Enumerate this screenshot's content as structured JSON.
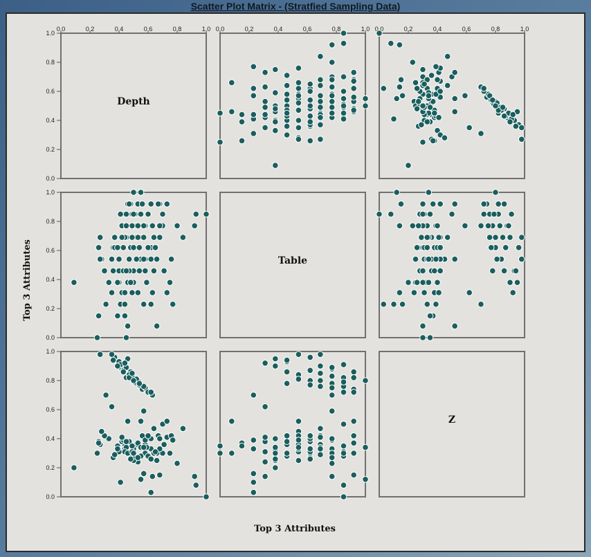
{
  "window": {
    "title": "Scatter Plot Matrix - (Stratfied Sampling Data)"
  },
  "chart_data": {
    "type": "scatter",
    "title": "Scatter Plot Matrix - (Stratfied Sampling Data)",
    "xlabel": "Top 3 Attributes",
    "ylabel": "Top 3 Attributes",
    "variables": [
      "Depth",
      "Table",
      "Z"
    ],
    "ticks": [
      "0.0",
      "0.2",
      "0.4",
      "0.6",
      "0.8",
      "1.0"
    ],
    "tick_values": [
      0,
      0.2,
      0.4,
      0.6,
      0.8,
      1.0
    ],
    "xlim": [
      0,
      1
    ],
    "ylim": [
      0,
      1
    ],
    "point_color": "#1b5e5e",
    "points": [
      {
        "Depth": 0.45,
        "Table": 0.0,
        "Z": 0.35
      },
      {
        "Depth": 0.46,
        "Table": 0.08,
        "Z": 0.52
      },
      {
        "Depth": 0.44,
        "Table": 0.15,
        "Z": 0.36
      },
      {
        "Depth": 0.41,
        "Table": 0.23,
        "Z": 0.1
      },
      {
        "Depth": 0.44,
        "Table": 0.23,
        "Z": 0.33
      },
      {
        "Depth": 0.53,
        "Table": 0.31,
        "Z": 0.24
      },
      {
        "Depth": 0.42,
        "Table": 0.31,
        "Z": 0.38
      },
      {
        "Depth": 0.5,
        "Table": 0.38,
        "Z": 0.25
      },
      {
        "Depth": 0.4,
        "Table": 0.38,
        "Z": 0.32
      },
      {
        "Depth": 0.5,
        "Table": 0.46,
        "Z": 0.28
      },
      {
        "Depth": 0.47,
        "Table": 0.46,
        "Z": 0.38
      },
      {
        "Depth": 0.55,
        "Table": 0.54,
        "Z": 0.52
      },
      {
        "Depth": 0.4,
        "Table": 0.54,
        "Z": 0.31
      },
      {
        "Depth": 0.36,
        "Table": 0.62,
        "Z": 0.27
      },
      {
        "Depth": 0.48,
        "Table": 0.62,
        "Z": 0.3
      },
      {
        "Depth": 0.52,
        "Table": 0.69,
        "Z": 0.36
      },
      {
        "Depth": 0.45,
        "Table": 0.69,
        "Z": 0.34
      },
      {
        "Depth": 0.5,
        "Table": 0.77,
        "Z": 0.33
      },
      {
        "Depth": 0.43,
        "Table": 0.77,
        "Z": 0.39
      },
      {
        "Depth": 0.49,
        "Table": 0.85,
        "Z": 0.35
      },
      {
        "Depth": 0.44,
        "Table": 0.85,
        "Z": 0.31
      },
      {
        "Depth": 0.46,
        "Table": 0.92,
        "Z": 0.3
      },
      {
        "Depth": 0.53,
        "Table": 0.92,
        "Z": 0.37
      },
      {
        "Depth": 0.55,
        "Table": 1.0,
        "Z": 0.34
      },
      {
        "Depth": 0.33,
        "Table": 0.38,
        "Z": 0.4
      },
      {
        "Depth": 0.3,
        "Table": 0.46,
        "Z": 0.42
      },
      {
        "Depth": 0.28,
        "Table": 0.54,
        "Z": 0.45
      },
      {
        "Depth": 0.26,
        "Table": 0.62,
        "Z": 0.38
      },
      {
        "Depth": 0.37,
        "Table": 0.69,
        "Z": 0.29
      },
      {
        "Depth": 0.58,
        "Table": 0.77,
        "Z": 0.3
      },
      {
        "Depth": 0.6,
        "Table": 0.85,
        "Z": 0.28
      },
      {
        "Depth": 0.62,
        "Table": 0.54,
        "Z": 0.33
      },
      {
        "Depth": 0.58,
        "Table": 0.46,
        "Z": 0.36
      },
      {
        "Depth": 0.62,
        "Table": 0.62,
        "Z": 0.4
      },
      {
        "Depth": 0.56,
        "Table": 0.69,
        "Z": 0.42
      },
      {
        "Depth": 0.66,
        "Table": 0.54,
        "Z": 0.25
      },
      {
        "Depth": 0.59,
        "Table": 0.38,
        "Z": 0.34
      },
      {
        "Depth": 0.49,
        "Table": 0.31,
        "Z": 0.31
      },
      {
        "Depth": 0.7,
        "Table": 0.77,
        "Z": 0.3
      },
      {
        "Depth": 0.68,
        "Table": 0.92,
        "Z": 0.15
      },
      {
        "Depth": 0.63,
        "Table": 0.31,
        "Z": 0.14
      },
      {
        "Depth": 0.57,
        "Table": 0.23,
        "Z": 0.16
      },
      {
        "Depth": 0.45,
        "Table": 0.85,
        "Z": 0.82
      },
      {
        "Depth": 0.52,
        "Table": 0.77,
        "Z": 0.78
      },
      {
        "Depth": 0.48,
        "Table": 0.92,
        "Z": 0.86
      },
      {
        "Depth": 0.44,
        "Table": 0.69,
        "Z": 0.9
      },
      {
        "Depth": 0.55,
        "Table": 0.85,
        "Z": 0.76
      },
      {
        "Depth": 0.5,
        "Table": 0.62,
        "Z": 0.8
      },
      {
        "Depth": 0.42,
        "Table": 0.77,
        "Z": 0.88
      },
      {
        "Depth": 0.47,
        "Table": 0.54,
        "Z": 0.84
      },
      {
        "Depth": 0.4,
        "Table": 0.46,
        "Z": 0.93
      },
      {
        "Depth": 0.53,
        "Table": 0.69,
        "Z": 0.8
      },
      {
        "Depth": 0.46,
        "Table": 0.38,
        "Z": 0.95
      },
      {
        "Depth": 0.49,
        "Table": 0.77,
        "Z": 0.83
      },
      {
        "Depth": 0.56,
        "Table": 0.92,
        "Z": 0.74
      },
      {
        "Depth": 0.51,
        "Table": 0.85,
        "Z": 0.79
      },
      {
        "Depth": 0.43,
        "Table": 0.62,
        "Z": 0.87
      },
      {
        "Depth": 0.58,
        "Table": 0.77,
        "Z": 0.75
      },
      {
        "Depth": 0.47,
        "Table": 0.92,
        "Z": 0.82
      },
      {
        "Depth": 0.54,
        "Table": 0.62,
        "Z": 0.77
      },
      {
        "Depth": 0.41,
        "Table": 0.85,
        "Z": 0.91
      },
      {
        "Depth": 0.49,
        "Table": 0.69,
        "Z": 0.85
      },
      {
        "Depth": 0.52,
        "Table": 0.54,
        "Z": 0.81
      },
      {
        "Depth": 0.45,
        "Table": 0.77,
        "Z": 0.89
      },
      {
        "Depth": 0.6,
        "Table": 0.85,
        "Z": 0.72
      },
      {
        "Depth": 0.57,
        "Table": 0.69,
        "Z": 0.76
      },
      {
        "Depth": 0.37,
        "Table": 0.62,
        "Z": 0.96
      },
      {
        "Depth": 0.35,
        "Table": 0.54,
        "Z": 0.98
      },
      {
        "Depth": 0.44,
        "Table": 0.31,
        "Z": 0.92
      },
      {
        "Depth": 0.63,
        "Table": 0.77,
        "Z": 0.7
      },
      {
        "Depth": 0.62,
        "Table": 0.92,
        "Z": 0.72
      },
      {
        "Depth": 0.5,
        "Table": 1.0,
        "Z": 0.8
      },
      {
        "Depth": 0.27,
        "Table": 0.69,
        "Z": 0.98
      },
      {
        "Depth": 0.36,
        "Table": 0.46,
        "Z": 0.94
      },
      {
        "Depth": 0.39,
        "Table": 0.38,
        "Z": 0.9
      },
      {
        "Depth": 0.31,
        "Table": 0.23,
        "Z": 0.7
      },
      {
        "Depth": 0.43,
        "Table": 0.46,
        "Z": 0.86
      },
      {
        "Depth": 0.54,
        "Table": 0.46,
        "Z": 0.78
      },
      {
        "Depth": 0.62,
        "Table": 0.23,
        "Z": 0.03
      },
      {
        "Depth": 0.73,
        "Table": 0.31,
        "Z": 0.41
      },
      {
        "Depth": 0.76,
        "Table": 0.54,
        "Z": 0.42
      },
      {
        "Depth": 0.8,
        "Table": 0.77,
        "Z": 0.23
      },
      {
        "Depth": 0.62,
        "Table": 0.62,
        "Z": 0.26
      },
      {
        "Depth": 0.7,
        "Table": 0.85,
        "Z": 0.5
      },
      {
        "Depth": 0.64,
        "Table": 0.69,
        "Z": 0.47
      },
      {
        "Depth": 0.67,
        "Table": 0.92,
        "Z": 0.42
      },
      {
        "Depth": 0.75,
        "Table": 0.38,
        "Z": 0.3
      },
      {
        "Depth": 0.93,
        "Table": 0.85,
        "Z": 0.08
      },
      {
        "Depth": 0.25,
        "Table": 0.0,
        "Z": 0.3
      },
      {
        "Depth": 0.09,
        "Table": 0.38,
        "Z": 0.2
      },
      {
        "Depth": 0.27,
        "Table": 0.54,
        "Z": 0.36
      },
      {
        "Depth": 0.84,
        "Table": 0.69,
        "Z": 0.47
      },
      {
        "Depth": 0.57,
        "Table": 0.77,
        "Z": 0.59
      },
      {
        "Depth": 0.35,
        "Table": 0.31,
        "Z": 0.62
      },
      {
        "Depth": 0.66,
        "Table": 0.08,
        "Z": 0.3
      },
      {
        "Depth": 0.77,
        "Table": 0.23,
        "Z": 0.39
      },
      {
        "Depth": 0.92,
        "Table": 0.77,
        "Z": 0.14
      },
      {
        "Depth": 0.73,
        "Table": 0.92,
        "Z": 0.52
      },
      {
        "Depth": 0.26,
        "Table": 0.15,
        "Z": 0.37
      },
      {
        "Depth": 0.55,
        "Table": 1.0,
        "Z": 0.12
      },
      {
        "Depth": 0.64,
        "Table": 0.46,
        "Z": 0.3
      },
      {
        "Depth": 1.0,
        "Table": 0.85,
        "Z": 0.0
      },
      {
        "Depth": 0.39,
        "Table": 0.15,
        "Z": 0.35
      },
      {
        "Depth": 0.58,
        "Table": 0.54,
        "Z": 0.39
      },
      {
        "Depth": 0.68,
        "Table": 0.69,
        "Z": 0.33
      },
      {
        "Depth": 0.6,
        "Table": 0.62,
        "Z": 0.42
      },
      {
        "Depth": 0.68,
        "Table": 0.77,
        "Z": 0.4
      },
      {
        "Depth": 0.55,
        "Table": 0.85,
        "Z": 0.28
      },
      {
        "Depth": 0.71,
        "Table": 0.46,
        "Z": 0.36
      },
      {
        "Depth": 0.48,
        "Table": 0.38,
        "Z": 0.26
      },
      {
        "Depth": 0.65,
        "Table": 0.62,
        "Z": 0.31
      },
      {
        "Depth": 0.57,
        "Table": 0.54,
        "Z": 0.34
      },
      {
        "Depth": 0.42,
        "Table": 0.69,
        "Z": 0.41
      },
      {
        "Depth": 0.45,
        "Table": 0.46,
        "Z": 0.38
      },
      {
        "Depth": 0.39,
        "Table": 0.62,
        "Z": 0.33
      },
      {
        "Depth": 0.5,
        "Table": 0.85,
        "Z": 0.3
      },
      {
        "Depth": 0.53,
        "Table": 0.77,
        "Z": 0.27
      }
    ]
  }
}
